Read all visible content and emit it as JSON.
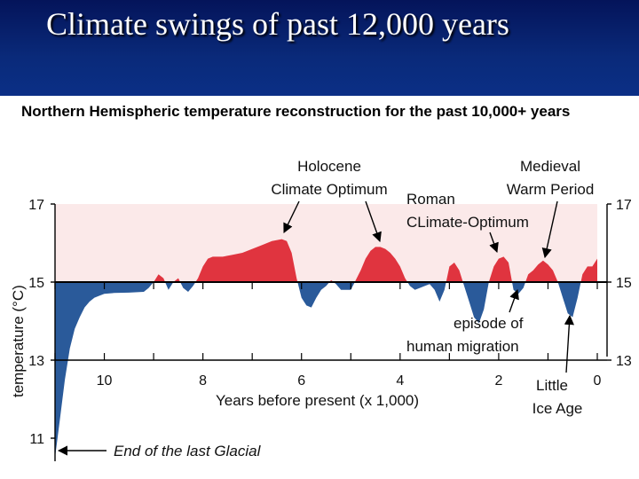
{
  "slide": {
    "title": "Climate swings of past 12,000 years"
  },
  "colors": {
    "banner": "#0a2a7a",
    "warm": "#e0343f",
    "cold": "#2a5a9a",
    "warm_bg": "#fbe9e9"
  },
  "chart_data": {
    "type": "area",
    "title": "Northern Hemispheric temperature reconstruction for the past 10,000+ years",
    "xlabel": "Years before present (x 1,000)",
    "ylabel": "temperature (°C)",
    "xlim": [
      11.0,
      0.0
    ],
    "ylim": [
      10.4,
      17.0
    ],
    "baseline": 15,
    "x_ticks": [
      "10",
      "8",
      "6",
      "4",
      "2",
      "0"
    ],
    "y_ticks": [
      "17",
      "15",
      "13",
      "11"
    ],
    "right_y_ticks": [
      "17",
      "15",
      "13"
    ],
    "series": [
      {
        "x": [
          11.0,
          10.9,
          10.8,
          10.7,
          10.6,
          10.5,
          10.4,
          10.3,
          10.2,
          10.1,
          10.0,
          9.8,
          9.5,
          9.2,
          9.1,
          9.0,
          8.9,
          8.8,
          8.7,
          8.6,
          8.5,
          8.4,
          8.3,
          8.2,
          8.1,
          8.0,
          7.9,
          7.8,
          7.6,
          7.4,
          7.2,
          7.0,
          6.8,
          6.6,
          6.4,
          6.3,
          6.2,
          6.1,
          6.0,
          5.9,
          5.8,
          5.7,
          5.6,
          5.5,
          5.4,
          5.3,
          5.2,
          5.0,
          4.8,
          4.7,
          4.6,
          4.5,
          4.4,
          4.3,
          4.2,
          4.1,
          4.0,
          3.9,
          3.8,
          3.7,
          3.6,
          3.5,
          3.4,
          3.3,
          3.2,
          3.1,
          3.0,
          2.9,
          2.8,
          2.7,
          2.6,
          2.5,
          2.4,
          2.3,
          2.2,
          2.1,
          2.0,
          1.9,
          1.8,
          1.7,
          1.6,
          1.5,
          1.4,
          1.3,
          1.2,
          1.1,
          1.0,
          0.9,
          0.8,
          0.7,
          0.6,
          0.5,
          0.4,
          0.3,
          0.2,
          0.1,
          0.0
        ],
        "values": [
          10.5,
          11.5,
          12.5,
          13.3,
          13.8,
          14.1,
          14.35,
          14.5,
          14.6,
          14.65,
          14.7,
          14.72,
          14.73,
          14.75,
          14.85,
          15.0,
          15.2,
          15.1,
          14.8,
          15.0,
          15.1,
          14.85,
          14.75,
          14.9,
          15.1,
          15.4,
          15.6,
          15.65,
          15.65,
          15.7,
          15.75,
          15.85,
          15.95,
          16.05,
          16.1,
          16.05,
          15.75,
          15.1,
          14.6,
          14.4,
          14.35,
          14.6,
          14.8,
          14.9,
          15.05,
          14.95,
          14.8,
          14.8,
          15.3,
          15.6,
          15.8,
          15.9,
          15.9,
          15.85,
          15.75,
          15.6,
          15.4,
          15.1,
          14.9,
          14.8,
          14.85,
          14.9,
          14.95,
          14.8,
          14.5,
          14.8,
          15.4,
          15.5,
          15.3,
          14.9,
          14.5,
          14.1,
          13.95,
          14.3,
          15.0,
          15.4,
          15.6,
          15.65,
          15.5,
          14.8,
          14.7,
          14.85,
          15.2,
          15.3,
          15.45,
          15.55,
          15.45,
          15.3,
          15.0,
          14.6,
          14.2,
          14.1,
          14.6,
          15.2,
          15.4,
          15.4,
          15.6
        ]
      }
    ],
    "annotations": [
      {
        "lines": [
          "Holocene",
          "Climate Optimum"
        ]
      },
      {
        "lines": [
          "Roman",
          "CLimate-Optimum"
        ]
      },
      {
        "lines": [
          "Medieval",
          "Warm Period"
        ]
      },
      {
        "lines": [
          "episode of",
          "human migration"
        ]
      },
      {
        "lines": [
          "Little",
          "Ice Age"
        ]
      },
      {
        "lines": [
          "End of the last Glacial"
        ]
      }
    ]
  }
}
